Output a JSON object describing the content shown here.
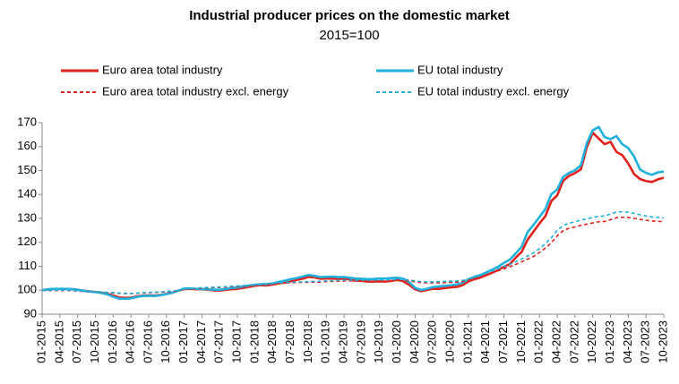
{
  "chart_data": {
    "type": "line",
    "title": "Industrial producer prices on the domestic market",
    "subtitle": "2015=100",
    "legend": "top",
    "grid": false,
    "ylim": [
      90,
      170
    ],
    "yticks": [
      90,
      100,
      110,
      120,
      130,
      140,
      150,
      160,
      170
    ],
    "categories": [
      "01-2015",
      null,
      null,
      "04-2015",
      null,
      null,
      "07-2015",
      null,
      null,
      "10-2015",
      null,
      null,
      "01-2016",
      null,
      null,
      "04-2016",
      null,
      null,
      "07-2016",
      null,
      null,
      "10-2016",
      null,
      null,
      "01-2017",
      null,
      null,
      "04-2017",
      null,
      null,
      "07-2017",
      null,
      null,
      "10-2017",
      null,
      null,
      "01-2018",
      null,
      null,
      "04-2018",
      null,
      null,
      "07-2018",
      null,
      null,
      "10-2018",
      null,
      null,
      "01-2019",
      null,
      null,
      "04-2019",
      null,
      null,
      "07-2019",
      null,
      null,
      "10-2019",
      null,
      null,
      "01-2020",
      null,
      null,
      "04-2020",
      null,
      null,
      "07-2020",
      null,
      null,
      "10-2020",
      null,
      null,
      "01-2021",
      null,
      null,
      "04-2021",
      null,
      null,
      "07-2021",
      null,
      null,
      "10-2021",
      null,
      null,
      "01-2022",
      null,
      null,
      "04-2022",
      null,
      null,
      "07-2022",
      null,
      null,
      "10-2022",
      null,
      null,
      "01-2023",
      null,
      null,
      "04-2023",
      null,
      null,
      "07-2023",
      null,
      null,
      "10-2023"
    ],
    "series": [
      {
        "name": "Euro area total industry",
        "color": "#e3201b",
        "dashed": false,
        "values": [
          100,
          100.3,
          100.5,
          100.5,
          100.5,
          100.4,
          100.2,
          99.8,
          99.5,
          99.3,
          99.0,
          98.6,
          97.8,
          97.0,
          96.8,
          96.9,
          97.4,
          97.8,
          97.9,
          97.8,
          98.0,
          98.5,
          99.0,
          99.8,
          100.5,
          100.6,
          100.4,
          100.4,
          100.2,
          99.9,
          99.9,
          100.1,
          100.4,
          100.6,
          101.0,
          101.4,
          101.9,
          102.1,
          102.0,
          102.4,
          102.9,
          103.2,
          103.7,
          104.3,
          104.8,
          105.6,
          105.4,
          104.8,
          104.9,
          104.9,
          104.7,
          104.9,
          104.4,
          104.0,
          103.9,
          103.6,
          103.6,
          103.7,
          103.6,
          103.9,
          104.3,
          103.8,
          102.3,
          100.4,
          99.6,
          100.1,
          100.6,
          100.6,
          100.9,
          101.2,
          101.4,
          102.1,
          103.7,
          104.6,
          105.3,
          106.3,
          107.3,
          108.4,
          109.8,
          110.9,
          113.6,
          116.0,
          121.1,
          124.5,
          127.9,
          130.9,
          137.2,
          139.6,
          145.7,
          147.8,
          148.9,
          150.5,
          159.7,
          165.8,
          163.4,
          161.0,
          162.0,
          157.8,
          156.4,
          152.9,
          148.5,
          146.4,
          145.6,
          145.2,
          146.3,
          147.0
        ]
      },
      {
        "name": "EU total industry",
        "color": "#1fb1dc",
        "dashed": false,
        "values": [
          100,
          100.4,
          100.6,
          100.6,
          100.6,
          100.5,
          100.2,
          99.8,
          99.4,
          99.2,
          98.9,
          98.3,
          97.3,
          96.5,
          96.4,
          96.6,
          97.2,
          97.6,
          97.7,
          97.6,
          97.9,
          98.4,
          99.0,
          99.8,
          100.7,
          100.8,
          100.6,
          100.5,
          100.4,
          100.2,
          100.2,
          100.5,
          100.9,
          101.2,
          101.6,
          102.0,
          102.3,
          102.5,
          102.6,
          102.9,
          103.5,
          104.0,
          104.6,
          105.1,
          105.7,
          106.4,
          106.0,
          105.5,
          105.6,
          105.7,
          105.5,
          105.5,
          105.2,
          104.9,
          104.8,
          104.6,
          104.7,
          104.9,
          104.9,
          105.1,
          105.2,
          104.8,
          103.4,
          101.0,
          100.1,
          100.6,
          101.3,
          101.6,
          101.8,
          102.1,
          102.4,
          103.1,
          104.6,
          105.6,
          106.3,
          107.4,
          108.6,
          109.8,
          111.4,
          112.8,
          115.4,
          118.2,
          124.3,
          127.3,
          130.6,
          133.9,
          140.1,
          142.1,
          147.3,
          149.0,
          150.1,
          152.2,
          161.4,
          166.8,
          168.2,
          164.0,
          163.1,
          164.4,
          161.0,
          159.4,
          155.8,
          150.4,
          149.0,
          148.2,
          149.2,
          149.6
        ]
      },
      {
        "name": "Euro area total industry excl. energy",
        "color": "#e3201b",
        "dashed": true,
        "values": [
          100,
          99.9,
          99.9,
          99.9,
          99.9,
          99.8,
          99.7,
          99.5,
          99.4,
          99.3,
          99.2,
          99.0,
          98.9,
          98.7,
          98.6,
          98.6,
          98.7,
          98.9,
          99.0,
          99.1,
          99.2,
          99.3,
          99.5,
          99.8,
          100.2,
          100.5,
          100.7,
          100.9,
          101.0,
          101.1,
          101.2,
          101.3,
          101.5,
          101.6,
          101.8,
          102.0,
          102.2,
          102.4,
          102.6,
          102.8,
          102.9,
          103.0,
          103.1,
          103.2,
          103.3,
          103.3,
          103.4,
          103.4,
          103.6,
          103.7,
          103.8,
          103.9,
          103.9,
          103.9,
          103.9,
          103.9,
          103.9,
          103.9,
          103.9,
          104.0,
          104.1,
          104.1,
          104.0,
          103.5,
          103.2,
          103.1,
          103.1,
          103.1,
          103.2,
          103.3,
          103.4,
          103.6,
          104.2,
          104.8,
          105.5,
          106.3,
          107.2,
          108.1,
          109.0,
          109.8,
          110.8,
          111.9,
          113.0,
          114.1,
          115.8,
          117.6,
          119.8,
          122.7,
          124.9,
          125.9,
          126.4,
          127.1,
          127.6,
          128.1,
          128.6,
          128.7,
          129.5,
          130.3,
          130.5,
          130.4,
          130.0,
          129.6,
          129.2,
          128.9,
          128.8,
          128.6
        ]
      },
      {
        "name": "EU total industry excl. energy",
        "color": "#1fb1dc",
        "dashed": true,
        "values": [
          100,
          99.9,
          100.0,
          100.0,
          100.0,
          99.9,
          99.8,
          99.6,
          99.5,
          99.4,
          99.3,
          99.1,
          99.0,
          98.8,
          98.7,
          98.7,
          98.8,
          99.0,
          99.1,
          99.2,
          99.3,
          99.5,
          99.7,
          100.0,
          100.4,
          100.7,
          100.9,
          101.1,
          101.2,
          101.3,
          101.4,
          101.5,
          101.7,
          101.8,
          102.0,
          102.2,
          102.4,
          102.6,
          102.8,
          103.0,
          103.1,
          103.2,
          103.3,
          103.4,
          103.5,
          103.6,
          103.7,
          103.7,
          103.9,
          104.0,
          104.1,
          104.2,
          104.2,
          104.2,
          104.2,
          104.2,
          104.2,
          104.3,
          104.3,
          104.4,
          104.5,
          104.5,
          104.3,
          103.9,
          103.6,
          103.5,
          103.5,
          103.6,
          103.7,
          103.8,
          103.9,
          104.1,
          104.7,
          105.4,
          106.1,
          107.0,
          108.0,
          108.9,
          109.9,
          110.8,
          111.9,
          113.1,
          114.3,
          115.6,
          117.4,
          119.4,
          121.9,
          125.0,
          127.0,
          128.0,
          128.6,
          129.3,
          129.8,
          130.4,
          130.9,
          131.0,
          131.8,
          132.6,
          132.8,
          132.6,
          132.1,
          131.5,
          131.0,
          130.6,
          130.4,
          130.2
        ]
      }
    ]
  }
}
